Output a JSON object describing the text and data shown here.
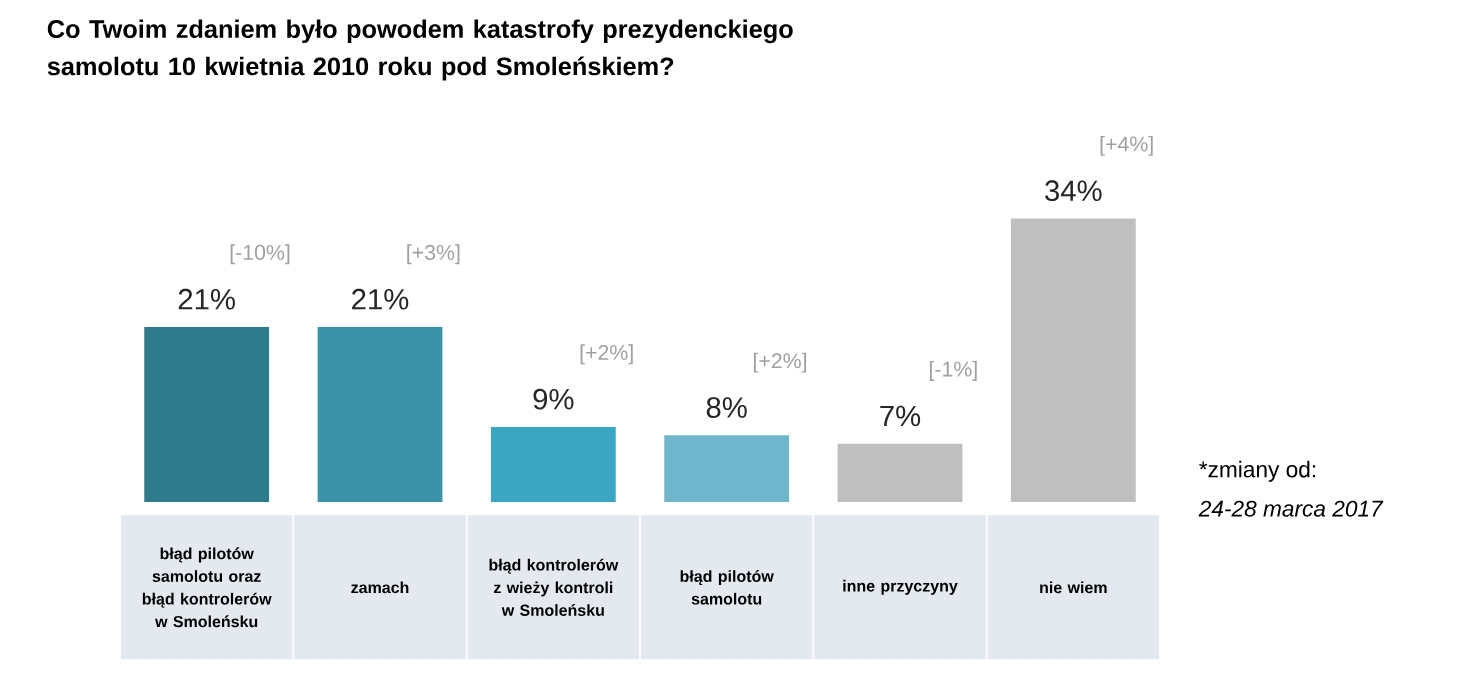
{
  "chart_data": {
    "type": "bar",
    "title": "Co Twoim zdaniem było powodem katastrofy prezydenckiego samolotu 10 kwietnia 2010 roku pod Smoleńskiem?",
    "categories": [
      "błąd pilotów samolotu oraz błąd kontrolerów w Smoleńsku",
      "zamach",
      "błąd kontrolerów z wieży kontroli w Smoleńsku",
      "błąd pilotów samolotu",
      "inne przyczyny",
      "nie wiem"
    ],
    "values": [
      21,
      21,
      9,
      8,
      7,
      34
    ],
    "value_labels": [
      "21%",
      "21%",
      "9%",
      "8%",
      "7%",
      "34%"
    ],
    "colors": [
      "#2e7b8c",
      "#3a93a9",
      "#3ba6c2",
      "#6fb6cc",
      "#bfbfbf",
      "#bfbfbf"
    ],
    "annotations": [
      "[-10%]",
      "[+3%]",
      "[+2%]",
      "[+2%]",
      "[-1%]",
      "[+4%]",
      "*zmiany od:",
      "24-28 marca 2017"
    ]
  }
}
